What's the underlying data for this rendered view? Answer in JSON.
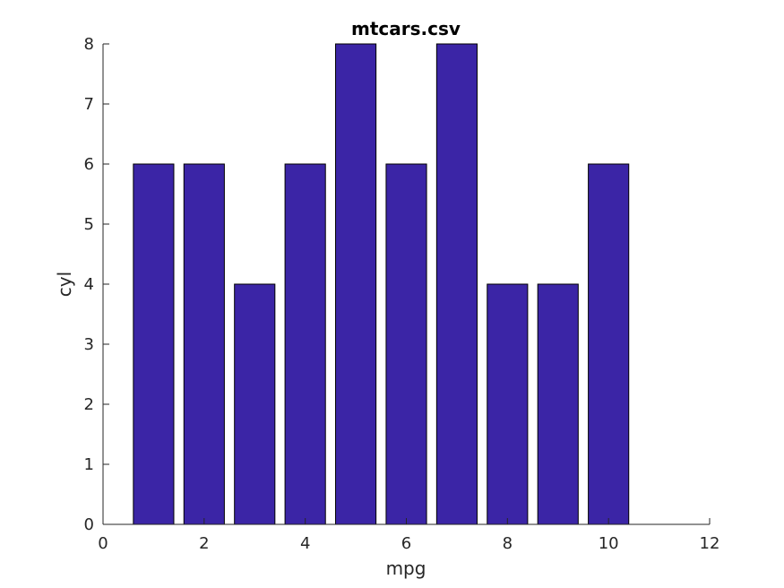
{
  "chart_data": {
    "type": "bar",
    "title": "mtcars.csv",
    "xlabel": "mpg",
    "ylabel": "cyl",
    "x": [
      1,
      2,
      3,
      4,
      5,
      6,
      7,
      8,
      9,
      10
    ],
    "values": [
      6,
      6,
      4,
      6,
      8,
      6,
      8,
      4,
      4,
      6
    ],
    "xlim": [
      0,
      12
    ],
    "ylim": [
      0,
      8
    ],
    "xticks": [
      0,
      2,
      4,
      6,
      8,
      10,
      12
    ],
    "yticks": [
      0,
      1,
      2,
      3,
      4,
      5,
      6,
      7,
      8
    ],
    "bar_color": "#3b25a6",
    "grid": false
  }
}
